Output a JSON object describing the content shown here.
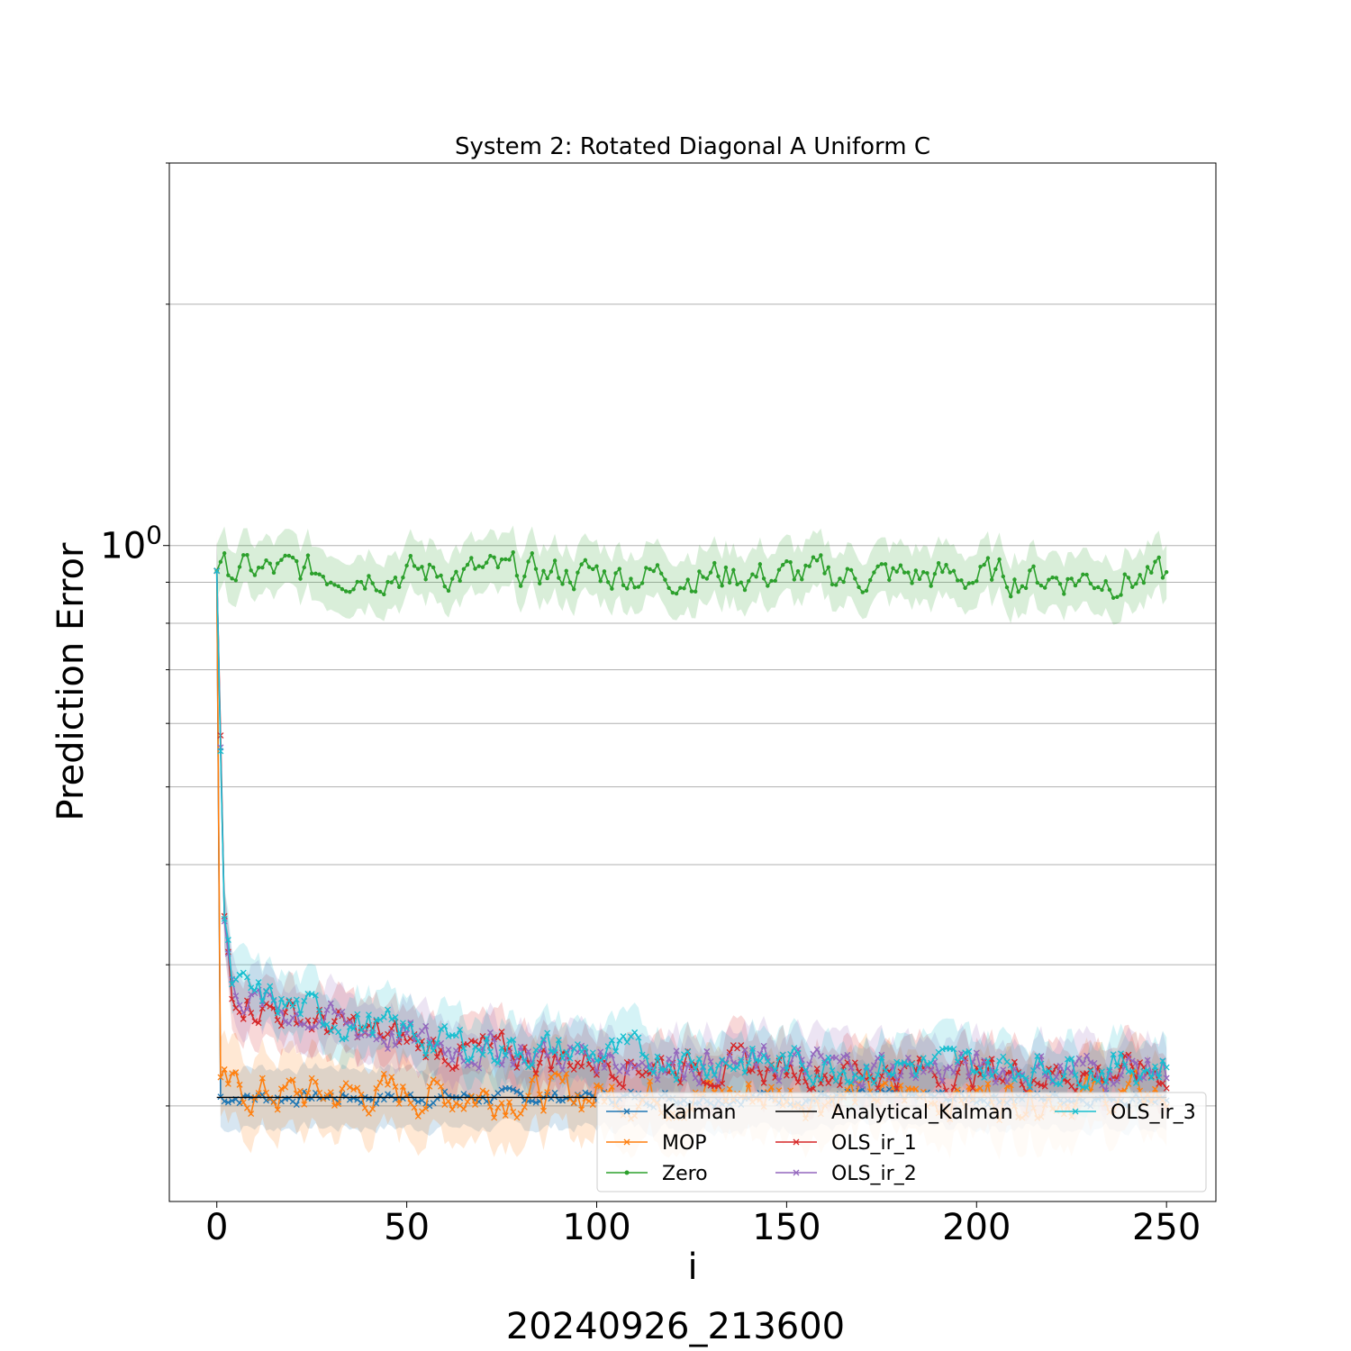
{
  "chart_data": {
    "type": "line",
    "title": "System 2: Rotated Diagonal A Uniform C",
    "xlabel": "i",
    "ylabel": "Prediction Error",
    "footer": "20240926_213600",
    "yscale": "log",
    "xlim": [
      -12.5,
      263
    ],
    "ylim": [
      0.152,
      3.0
    ],
    "xticks": [
      0,
      50,
      100,
      150,
      200,
      250
    ],
    "xtick_labels": [
      "0",
      "50",
      "100",
      "150",
      "200",
      "250"
    ],
    "ytick_major": [
      {
        "value": 1.0,
        "label_base": "10",
        "label_exp": "0"
      }
    ],
    "ytick_minor": [
      0.2,
      0.3,
      0.4,
      0.5,
      0.6,
      0.7,
      0.8,
      0.9,
      2,
      3
    ],
    "grid": "horizontal",
    "legend_position": "lower-right",
    "legend_columns": 3,
    "series": [
      {
        "name": "Kalman",
        "color": "#1f77b4",
        "marker": "x",
        "n": 251,
        "anchors": [
          [
            0,
            0.93
          ],
          [
            1,
            0.205
          ],
          [
            5,
            0.205
          ],
          [
            250,
            0.205
          ]
        ],
        "noise": 0.012,
        "band": 0.09
      },
      {
        "name": "MOP",
        "color": "#ff7f0e",
        "marker": "x",
        "n": 251,
        "anchors": [
          [
            0,
            0.93
          ],
          [
            1,
            0.208
          ],
          [
            10,
            0.207
          ],
          [
            250,
            0.206
          ]
        ],
        "noise": 0.035,
        "band": 0.12
      },
      {
        "name": "Zero",
        "color": "#2ca02c",
        "marker": "dot",
        "n": 251,
        "anchors": [
          [
            0,
            0.93
          ],
          [
            250,
            0.91
          ]
        ],
        "noise": 0.03,
        "band": 0.08
      },
      {
        "name": "Analytical_Kalman",
        "color": "#000000",
        "marker": "none",
        "n": 251,
        "anchors": [
          [
            0,
            0.205
          ],
          [
            250,
            0.205
          ]
        ],
        "noise": 0.0,
        "band": 0.0
      },
      {
        "name": "OLS_ir_1",
        "color": "#d62728",
        "marker": "x",
        "n": 251,
        "anchors": [
          [
            0,
            0.93
          ],
          [
            2,
            0.34
          ],
          [
            4,
            0.28
          ],
          [
            10,
            0.268
          ],
          [
            30,
            0.252
          ],
          [
            60,
            0.235
          ],
          [
            100,
            0.228
          ],
          [
            150,
            0.222
          ],
          [
            200,
            0.22
          ],
          [
            250,
            0.22
          ]
        ],
        "noise": 0.03,
        "band": 0.09
      },
      {
        "name": "OLS_ir_2",
        "color": "#9467bd",
        "marker": "x",
        "n": 251,
        "anchors": [
          [
            0,
            0.93
          ],
          [
            2,
            0.34
          ],
          [
            4,
            0.28
          ],
          [
            10,
            0.27
          ],
          [
            30,
            0.255
          ],
          [
            60,
            0.237
          ],
          [
            100,
            0.23
          ],
          [
            150,
            0.224
          ],
          [
            200,
            0.222
          ],
          [
            250,
            0.222
          ]
        ],
        "noise": 0.03,
        "band": 0.09
      },
      {
        "name": "OLS_ir_3",
        "color": "#17becf",
        "marker": "x",
        "n": 251,
        "anchors": [
          [
            0,
            0.93
          ],
          [
            2,
            0.34
          ],
          [
            4,
            0.282
          ],
          [
            10,
            0.273
          ],
          [
            30,
            0.258
          ],
          [
            60,
            0.24
          ],
          [
            100,
            0.232
          ],
          [
            150,
            0.226
          ],
          [
            200,
            0.224
          ],
          [
            250,
            0.224
          ]
        ],
        "noise": 0.03,
        "band": 0.09
      }
    ]
  }
}
